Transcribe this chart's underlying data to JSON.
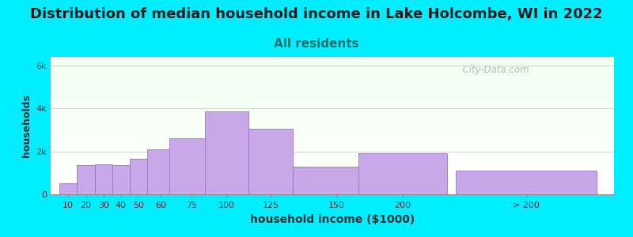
{
  "title": "Distribution of median household income in Lake Holcombe, WI in 2022",
  "subtitle": "All residents",
  "xlabel": "household income ($1000)",
  "ylabel": "households",
  "bar_labels": [
    "10",
    "20",
    "30",
    "40",
    "50",
    "60",
    "75",
    "100",
    "125",
    "150",
    "200",
    "> 200"
  ],
  "bar_values": [
    500,
    1350,
    1400,
    1350,
    1650,
    2100,
    2600,
    3850,
    3050,
    1300,
    1900,
    1100
  ],
  "bar_color": "#c8a8e8",
  "bar_edge_color": "#9878c0",
  "background_outer": "#00eeff",
  "yticks": [
    0,
    2000,
    4000,
    6000
  ],
  "ytick_labels": [
    "0",
    "2k",
    "4k",
    "6k"
  ],
  "ylim": [
    0,
    6400
  ],
  "title_fontsize": 13,
  "subtitle_fontsize": 11,
  "subtitle_color": "#207070",
  "title_color": "#1a1a1a",
  "xlabel_color": "#303030",
  "ylabel_color": "#303030",
  "watermark": "  City-Data.com",
  "bar_widths": [
    10,
    10,
    10,
    10,
    10,
    15,
    25,
    25,
    25,
    50,
    50,
    80
  ],
  "bar_lefts": [
    5,
    15,
    25,
    35,
    45,
    55,
    67.5,
    87.5,
    112.5,
    137.5,
    175,
    230
  ],
  "xlim": [
    0,
    320
  ]
}
